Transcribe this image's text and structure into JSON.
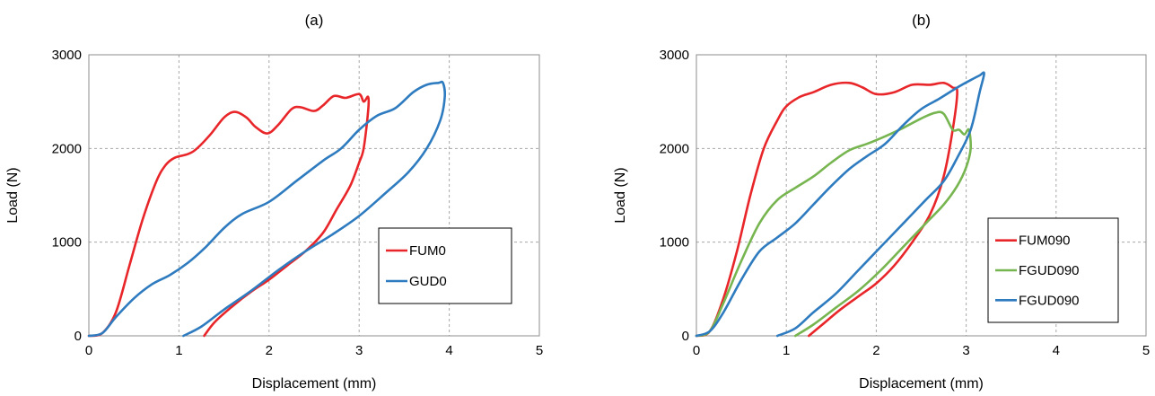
{
  "chart_data": [
    {
      "type": "line",
      "title": "(a)",
      "xlabel": "Displacement (mm)",
      "ylabel": "Load (N)",
      "xlim": [
        0,
        5
      ],
      "ylim": [
        0,
        3000
      ],
      "xticks": [
        "0",
        "1",
        "2",
        "3",
        "4",
        "5"
      ],
      "yticks": [
        "0",
        "1000",
        "2000",
        "3000"
      ],
      "grid": true,
      "legend_position": "center-right",
      "series": [
        {
          "name": "FUM0",
          "color": "#e8262a",
          "x": [
            0,
            0.15,
            0.3,
            0.45,
            0.6,
            0.75,
            0.85,
            0.95,
            1.1,
            1.2,
            1.35,
            1.5,
            1.62,
            1.75,
            1.85,
            1.98,
            2.1,
            2.25,
            2.35,
            2.5,
            2.6,
            2.72,
            2.85,
            3.0,
            3.05,
            3.1,
            3.1,
            3.05,
            3.0,
            2.9,
            2.75,
            2.6,
            2.4,
            2.2,
            2.0,
            1.8,
            1.6,
            1.4,
            1.28
          ],
          "y": [
            0,
            30,
            250,
            750,
            1250,
            1650,
            1820,
            1900,
            1940,
            2000,
            2150,
            2330,
            2390,
            2330,
            2230,
            2160,
            2250,
            2420,
            2440,
            2400,
            2460,
            2560,
            2540,
            2580,
            2500,
            2550,
            2400,
            2000,
            1850,
            1600,
            1350,
            1100,
            900,
            750,
            600,
            470,
            320,
            150,
            0
          ]
        },
        {
          "name": "GUD0",
          "color": "#2e7bbf",
          "x": [
            0,
            0.15,
            0.3,
            0.5,
            0.7,
            0.9,
            1.1,
            1.3,
            1.5,
            1.7,
            2.0,
            2.3,
            2.6,
            2.8,
            3.0,
            3.2,
            3.4,
            3.6,
            3.75,
            3.88,
            3.93,
            3.95,
            3.9,
            3.75,
            3.55,
            3.3,
            3.0,
            2.7,
            2.4,
            2.1,
            1.8,
            1.5,
            1.25,
            1.05
          ],
          "y": [
            0,
            30,
            200,
            400,
            550,
            650,
            780,
            950,
            1150,
            1300,
            1430,
            1650,
            1870,
            2000,
            2200,
            2350,
            2430,
            2600,
            2680,
            2700,
            2700,
            2550,
            2300,
            2000,
            1750,
            1530,
            1280,
            1080,
            900,
            700,
            480,
            280,
            100,
            0
          ]
        }
      ]
    },
    {
      "type": "line",
      "title": "(b)",
      "xlabel": "Displacement (mm)",
      "ylabel": "Load (N)",
      "xlim": [
        0,
        5
      ],
      "ylim": [
        0,
        3000
      ],
      "xticks": [
        "0",
        "1",
        "2",
        "3",
        "4",
        "5"
      ],
      "yticks": [
        "0",
        "1000",
        "2000",
        "3000"
      ],
      "grid": true,
      "legend_position": "bottom-right",
      "series": [
        {
          "name": "FUM090",
          "color": "#e8262a",
          "x": [
            0,
            0.15,
            0.3,
            0.45,
            0.6,
            0.75,
            0.9,
            1.0,
            1.15,
            1.3,
            1.5,
            1.7,
            1.85,
            2.0,
            2.2,
            2.4,
            2.6,
            2.75,
            2.85,
            2.9,
            2.85,
            2.75,
            2.6,
            2.4,
            2.2,
            2.0,
            1.8,
            1.6,
            1.4,
            1.25
          ],
          "y": [
            0,
            50,
            400,
            900,
            1500,
            2000,
            2300,
            2450,
            2550,
            2600,
            2680,
            2700,
            2650,
            2580,
            2600,
            2680,
            2680,
            2700,
            2650,
            2600,
            2200,
            1700,
            1300,
            1000,
            750,
            560,
            420,
            280,
            120,
            0
          ]
        },
        {
          "name": "FGUD090",
          "color": "#77b550",
          "x": [
            0,
            0.15,
            0.3,
            0.5,
            0.7,
            0.9,
            1.1,
            1.3,
            1.5,
            1.7,
            1.9,
            2.1,
            2.3,
            2.5,
            2.65,
            2.75,
            2.85,
            2.92,
            2.98,
            3.03,
            3.05,
            3.0,
            2.9,
            2.75,
            2.55,
            2.3,
            2.05,
            1.8,
            1.55,
            1.3,
            1.1
          ],
          "y": [
            0,
            50,
            350,
            800,
            1200,
            1450,
            1580,
            1700,
            1850,
            1980,
            2050,
            2130,
            2220,
            2320,
            2380,
            2370,
            2200,
            2200,
            2150,
            2200,
            2000,
            1800,
            1600,
            1400,
            1200,
            950,
            700,
            480,
            300,
            120,
            0
          ]
        },
        {
          "name": "FGUD090",
          "color": "#2e7bbf",
          "x": [
            0,
            0.15,
            0.3,
            0.5,
            0.7,
            0.9,
            1.1,
            1.3,
            1.5,
            1.7,
            1.9,
            2.1,
            2.3,
            2.5,
            2.7,
            2.9,
            3.05,
            3.15,
            3.2,
            3.15,
            3.05,
            2.9,
            2.75,
            2.55,
            2.3,
            2.05,
            1.8,
            1.55,
            1.3,
            1.1,
            0.9
          ],
          "y": [
            0,
            50,
            250,
            600,
            900,
            1050,
            1200,
            1400,
            1600,
            1780,
            1920,
            2050,
            2250,
            2420,
            2530,
            2650,
            2730,
            2780,
            2800,
            2600,
            2200,
            1900,
            1650,
            1450,
            1200,
            950,
            700,
            450,
            250,
            80,
            0
          ]
        }
      ]
    }
  ]
}
